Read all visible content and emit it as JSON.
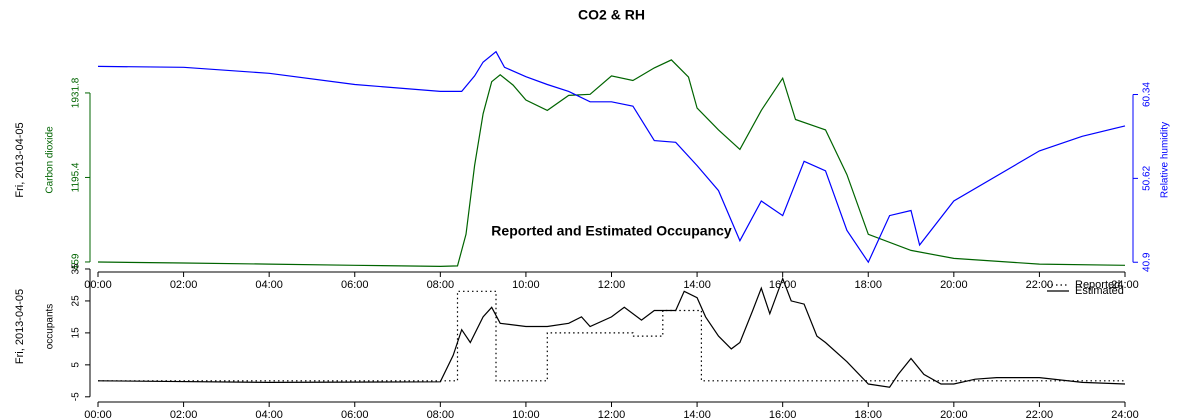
{
  "chart_data": [
    {
      "type": "line",
      "title": "CO2 & RH",
      "date_label": "Fri, 2013-04-05",
      "ylabel": "Carbon dioxide",
      "y2label": "Relative humidity",
      "xlim": [
        0,
        24
      ],
      "xticks": [
        {
          "value": 0,
          "label": "00:00"
        },
        {
          "value": 2,
          "label": "02:00"
        },
        {
          "value": 4,
          "label": "04:00"
        },
        {
          "value": 6,
          "label": "06:00"
        },
        {
          "value": 8,
          "label": "08:00"
        },
        {
          "value": 10,
          "label": "10:00"
        },
        {
          "value": 12,
          "label": "12:00"
        },
        {
          "value": 14,
          "label": "14:00"
        },
        {
          "value": 16,
          "label": "16:00"
        },
        {
          "value": 18,
          "label": "18:00"
        },
        {
          "value": 20,
          "label": "20:00"
        },
        {
          "value": 22,
          "label": "22:00"
        },
        {
          "value": 24,
          "label": "24:00"
        }
      ],
      "ylim": [
        389,
        2306
      ],
      "yticks": [
        459,
        1195.4,
        1931.8
      ],
      "y2lim": [
        40.0,
        65.5
      ],
      "y2ticks": [
        40.9,
        50.62,
        60.34
      ],
      "series": [
        {
          "name": "Carbon dioxide",
          "color": "#006400",
          "style": "solid",
          "x": [
            0,
            2,
            4,
            6,
            8,
            8.4,
            8.6,
            8.8,
            9.0,
            9.2,
            9.4,
            9.7,
            10,
            10.5,
            11,
            11.5,
            12,
            12.5,
            13,
            13.4,
            13.8,
            14,
            14.5,
            15,
            15.5,
            16,
            16.3,
            17,
            17.5,
            18,
            19,
            20,
            22,
            24
          ],
          "values": [
            459,
            450,
            440,
            430,
            420,
            425,
            700,
            1300,
            1750,
            2030,
            2090,
            2000,
            1870,
            1780,
            1910,
            1920,
            2080,
            2040,
            2150,
            2220,
            2070,
            1800,
            1610,
            1440,
            1780,
            2060,
            1700,
            1610,
            1220,
            700,
            560,
            490,
            440,
            430
          ]
        },
        {
          "name": "Relative humidity",
          "color": "#0000ff",
          "style": "solid",
          "axis": "y2",
          "x": [
            0,
            2,
            4,
            6,
            8,
            8.5,
            8.8,
            9.0,
            9.3,
            9.5,
            10,
            10.5,
            11,
            11.5,
            12,
            12.5,
            13,
            13.5,
            14,
            14.5,
            15,
            15.5,
            16,
            16.5,
            17,
            17.5,
            18,
            18.5,
            19,
            19.2,
            20,
            22,
            23,
            24
          ],
          "values": [
            63.6,
            63.5,
            62.8,
            61.5,
            60.7,
            60.7,
            62.5,
            64.1,
            65.3,
            63.5,
            62.4,
            61.5,
            60.7,
            59.5,
            59.5,
            59.0,
            55.0,
            54.8,
            52.1,
            49.2,
            43.4,
            48.0,
            46.3,
            52.6,
            51.5,
            44.6,
            40.9,
            46.3,
            46.9,
            42.9,
            48.0,
            53.8,
            55.5,
            56.7
          ]
        }
      ]
    },
    {
      "type": "line",
      "title": "Reported and Estimated Occupancy",
      "date_label": "Fri, 2013-04-05",
      "ylabel": "occupants",
      "legend": "topright",
      "xlim": [
        0,
        24
      ],
      "xticks": [
        {
          "value": 0,
          "label": "00:00"
        },
        {
          "value": 2,
          "label": "02:00"
        },
        {
          "value": 4,
          "label": "04:00"
        },
        {
          "value": 6,
          "label": "06:00"
        },
        {
          "value": 8,
          "label": "08:00"
        },
        {
          "value": 10,
          "label": "10:00"
        },
        {
          "value": 12,
          "label": "12:00"
        },
        {
          "value": 14,
          "label": "14:00"
        },
        {
          "value": 16,
          "label": "16:00"
        },
        {
          "value": 18,
          "label": "18:00"
        },
        {
          "value": 20,
          "label": "20:00"
        },
        {
          "value": 22,
          "label": "22:00"
        },
        {
          "value": 24,
          "label": "24:00"
        }
      ],
      "ylim": [
        -6,
        40
      ],
      "yticks": [
        -5,
        5,
        15,
        25,
        35
      ],
      "series": [
        {
          "name": "Reported",
          "color": "#000000",
          "style": "dotted",
          "x": [
            0,
            8.4,
            8.4,
            9.3,
            9.3,
            10.5,
            10.5,
            12.5,
            12.5,
            13.2,
            13.2,
            14.1,
            14.1,
            24
          ],
          "values": [
            0,
            0,
            28,
            28,
            0,
            0,
            15,
            15,
            14,
            14,
            22,
            22,
            0,
            0
          ]
        },
        {
          "name": "Estimated",
          "color": "#000000",
          "style": "solid",
          "x": [
            0,
            4,
            8,
            8.3,
            8.5,
            8.7,
            9.0,
            9.2,
            9.4,
            10,
            10.5,
            11,
            11.3,
            11.5,
            12,
            12.3,
            12.7,
            13,
            13.5,
            13.7,
            14,
            14.2,
            14.5,
            14.8,
            15,
            15.3,
            15.5,
            15.7,
            16,
            16.2,
            16.5,
            16.8,
            17,
            17.5,
            18,
            18.5,
            18.7,
            19,
            19.3,
            19.7,
            20,
            20.5,
            21,
            22,
            23,
            24
          ],
          "values": [
            0,
            -0.5,
            -0.3,
            8,
            16,
            12,
            20,
            23,
            18,
            17,
            17,
            18,
            20,
            17,
            20,
            23,
            19,
            22,
            22,
            28,
            26,
            20,
            14,
            10,
            12,
            22,
            29,
            21,
            32,
            25,
            24,
            14,
            12,
            6,
            -1,
            -2,
            2,
            7,
            2,
            -1,
            -1,
            0.5,
            1,
            1,
            -0.5,
            -1
          ]
        }
      ]
    }
  ]
}
